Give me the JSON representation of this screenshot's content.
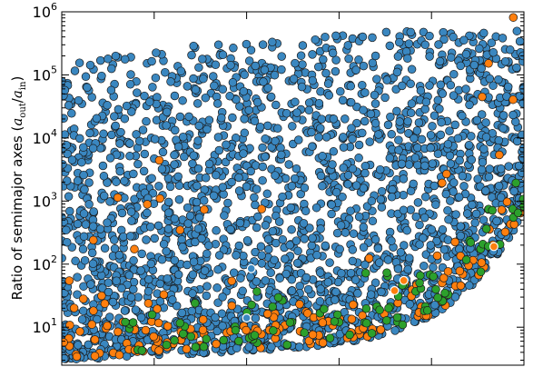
{
  "chart_data": {
    "type": "scatter",
    "title": "",
    "xlabel": "",
    "ylabel": "Ratio of semimajor axes (a_out/a_in)",
    "ylabel_parts": {
      "prefix": "Ratio of semimajor axes (",
      "a1": "a",
      "sub1": "out",
      "slash": "/",
      "a2": "a",
      "sub2": "in",
      "suffix": ")"
    },
    "y_scale": "log",
    "ylim": [
      2.5,
      1000000
    ],
    "y_ticks": [
      {
        "value": 10,
        "base": "10",
        "exp": "1"
      },
      {
        "value": 100,
        "base": "10",
        "exp": "2"
      },
      {
        "value": 1000,
        "base": "10",
        "exp": "3"
      },
      {
        "value": 10000,
        "base": "10",
        "exp": "4"
      },
      {
        "value": 100000,
        "base": "10",
        "exp": "5"
      },
      {
        "value": 1000000,
        "base": "10",
        "exp": "6"
      }
    ],
    "x_ticks_labeled": false,
    "grid": false,
    "legend": "none",
    "series": [
      {
        "color": "#3a87c0",
        "marker": "circle",
        "count": 2400,
        "pattern": "dense cloud; lower envelope rises steeply toward the right"
      },
      {
        "color": "#ff7f0e",
        "marker": "circle",
        "count": 170,
        "pattern": "concentrated near the lower envelope, 10^0.5-10^2.5"
      },
      {
        "color": "#2ca02c",
        "marker": "circle",
        "count": 95,
        "pattern": "concentrated near the lower envelope, right half"
      },
      {
        "color": "#ff7f0e",
        "marker": "circle-white-edge",
        "count": 3,
        "points": [
          [
            0.72,
            38
          ],
          [
            0.74,
            55
          ],
          [
            0.935,
            190
          ]
        ]
      },
      {
        "color": "#3a87c0",
        "marker": "circle-white-edge",
        "count": 2,
        "points": [
          [
            0.4,
            14
          ],
          [
            0.41,
            85
          ]
        ]
      }
    ]
  },
  "colors": {
    "blue": "#3a87c0",
    "orange": "#ff7f0e",
    "green": "#2ca02c",
    "edge": "#1a1a1a",
    "highlight_edge": "#ffffff"
  }
}
